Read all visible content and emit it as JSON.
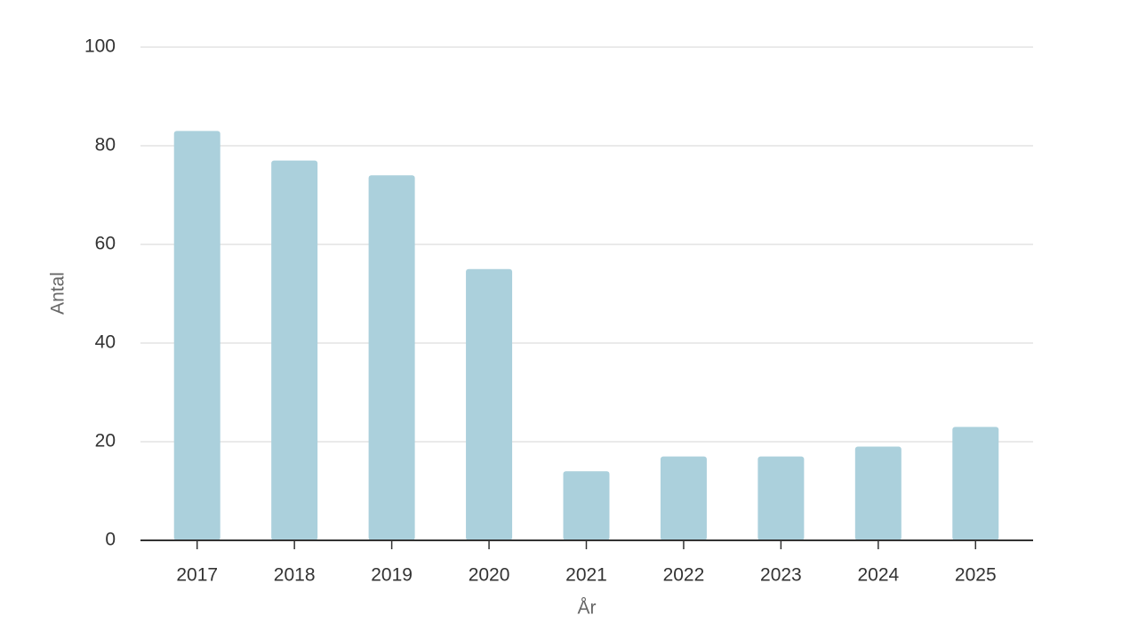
{
  "chart_data": {
    "type": "bar",
    "x_label": "År",
    "y_label": "Antal",
    "categories": [
      "2017",
      "2018",
      "2019",
      "2020",
      "2021",
      "2022",
      "2023",
      "2024",
      "2025"
    ],
    "values": [
      83,
      77,
      74,
      55,
      14,
      17,
      17,
      19,
      23
    ],
    "color": "#abd0dc",
    "ylim": [
      0,
      100
    ],
    "yticks": [
      0,
      20,
      40,
      60,
      80,
      100
    ],
    "grid": true
  }
}
